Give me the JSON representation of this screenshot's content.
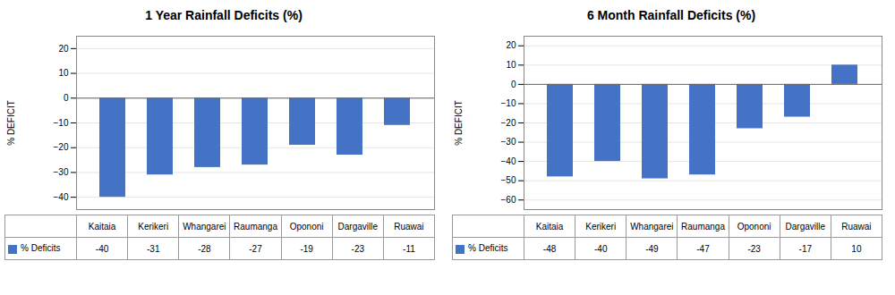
{
  "chart_data": [
    {
      "type": "bar",
      "title": "1 Year Rainfall Deficits (%)",
      "categories": [
        "Kaitaia",
        "Kerikeri",
        "Whangarei",
        "Raumanga",
        "Opononi",
        "Dargaville",
        "Ruawai"
      ],
      "series": [
        {
          "name": "% Deficits",
          "color": "#4472C4",
          "values": [
            -40,
            -31,
            -28,
            -27,
            -19,
            -23,
            -11
          ]
        }
      ],
      "ylabel": "% DEFICIT",
      "ylim": [
        -45,
        25
      ],
      "yticks": [
        -40,
        -30,
        -20,
        -10,
        0,
        10,
        20
      ],
      "grid": true,
      "data_labels": true,
      "tick_labels": "y",
      "legend": "bottom"
    },
    {
      "type": "bar",
      "title": "6 Month Rainfall Deficits (%)",
      "categories": [
        "Kaitaia",
        "Kerikeri",
        "Whangarei",
        "Raumanga",
        "Opononi",
        "Dargaville",
        "Ruawai"
      ],
      "series": [
        {
          "name": "% Deficits",
          "color": "#4472C4",
          "values": [
            -48,
            -40,
            -49,
            -47,
            -23,
            -17,
            10
          ]
        }
      ],
      "ylabel": "% DEFICIT",
      "ylim": [
        -65,
        25
      ],
      "yticks": [
        -60,
        -50,
        -40,
        -30,
        -20,
        -10,
        0,
        10,
        20
      ],
      "grid": true,
      "data_labels": true,
      "tick_labels": "y",
      "legend": "bottom"
    }
  ]
}
